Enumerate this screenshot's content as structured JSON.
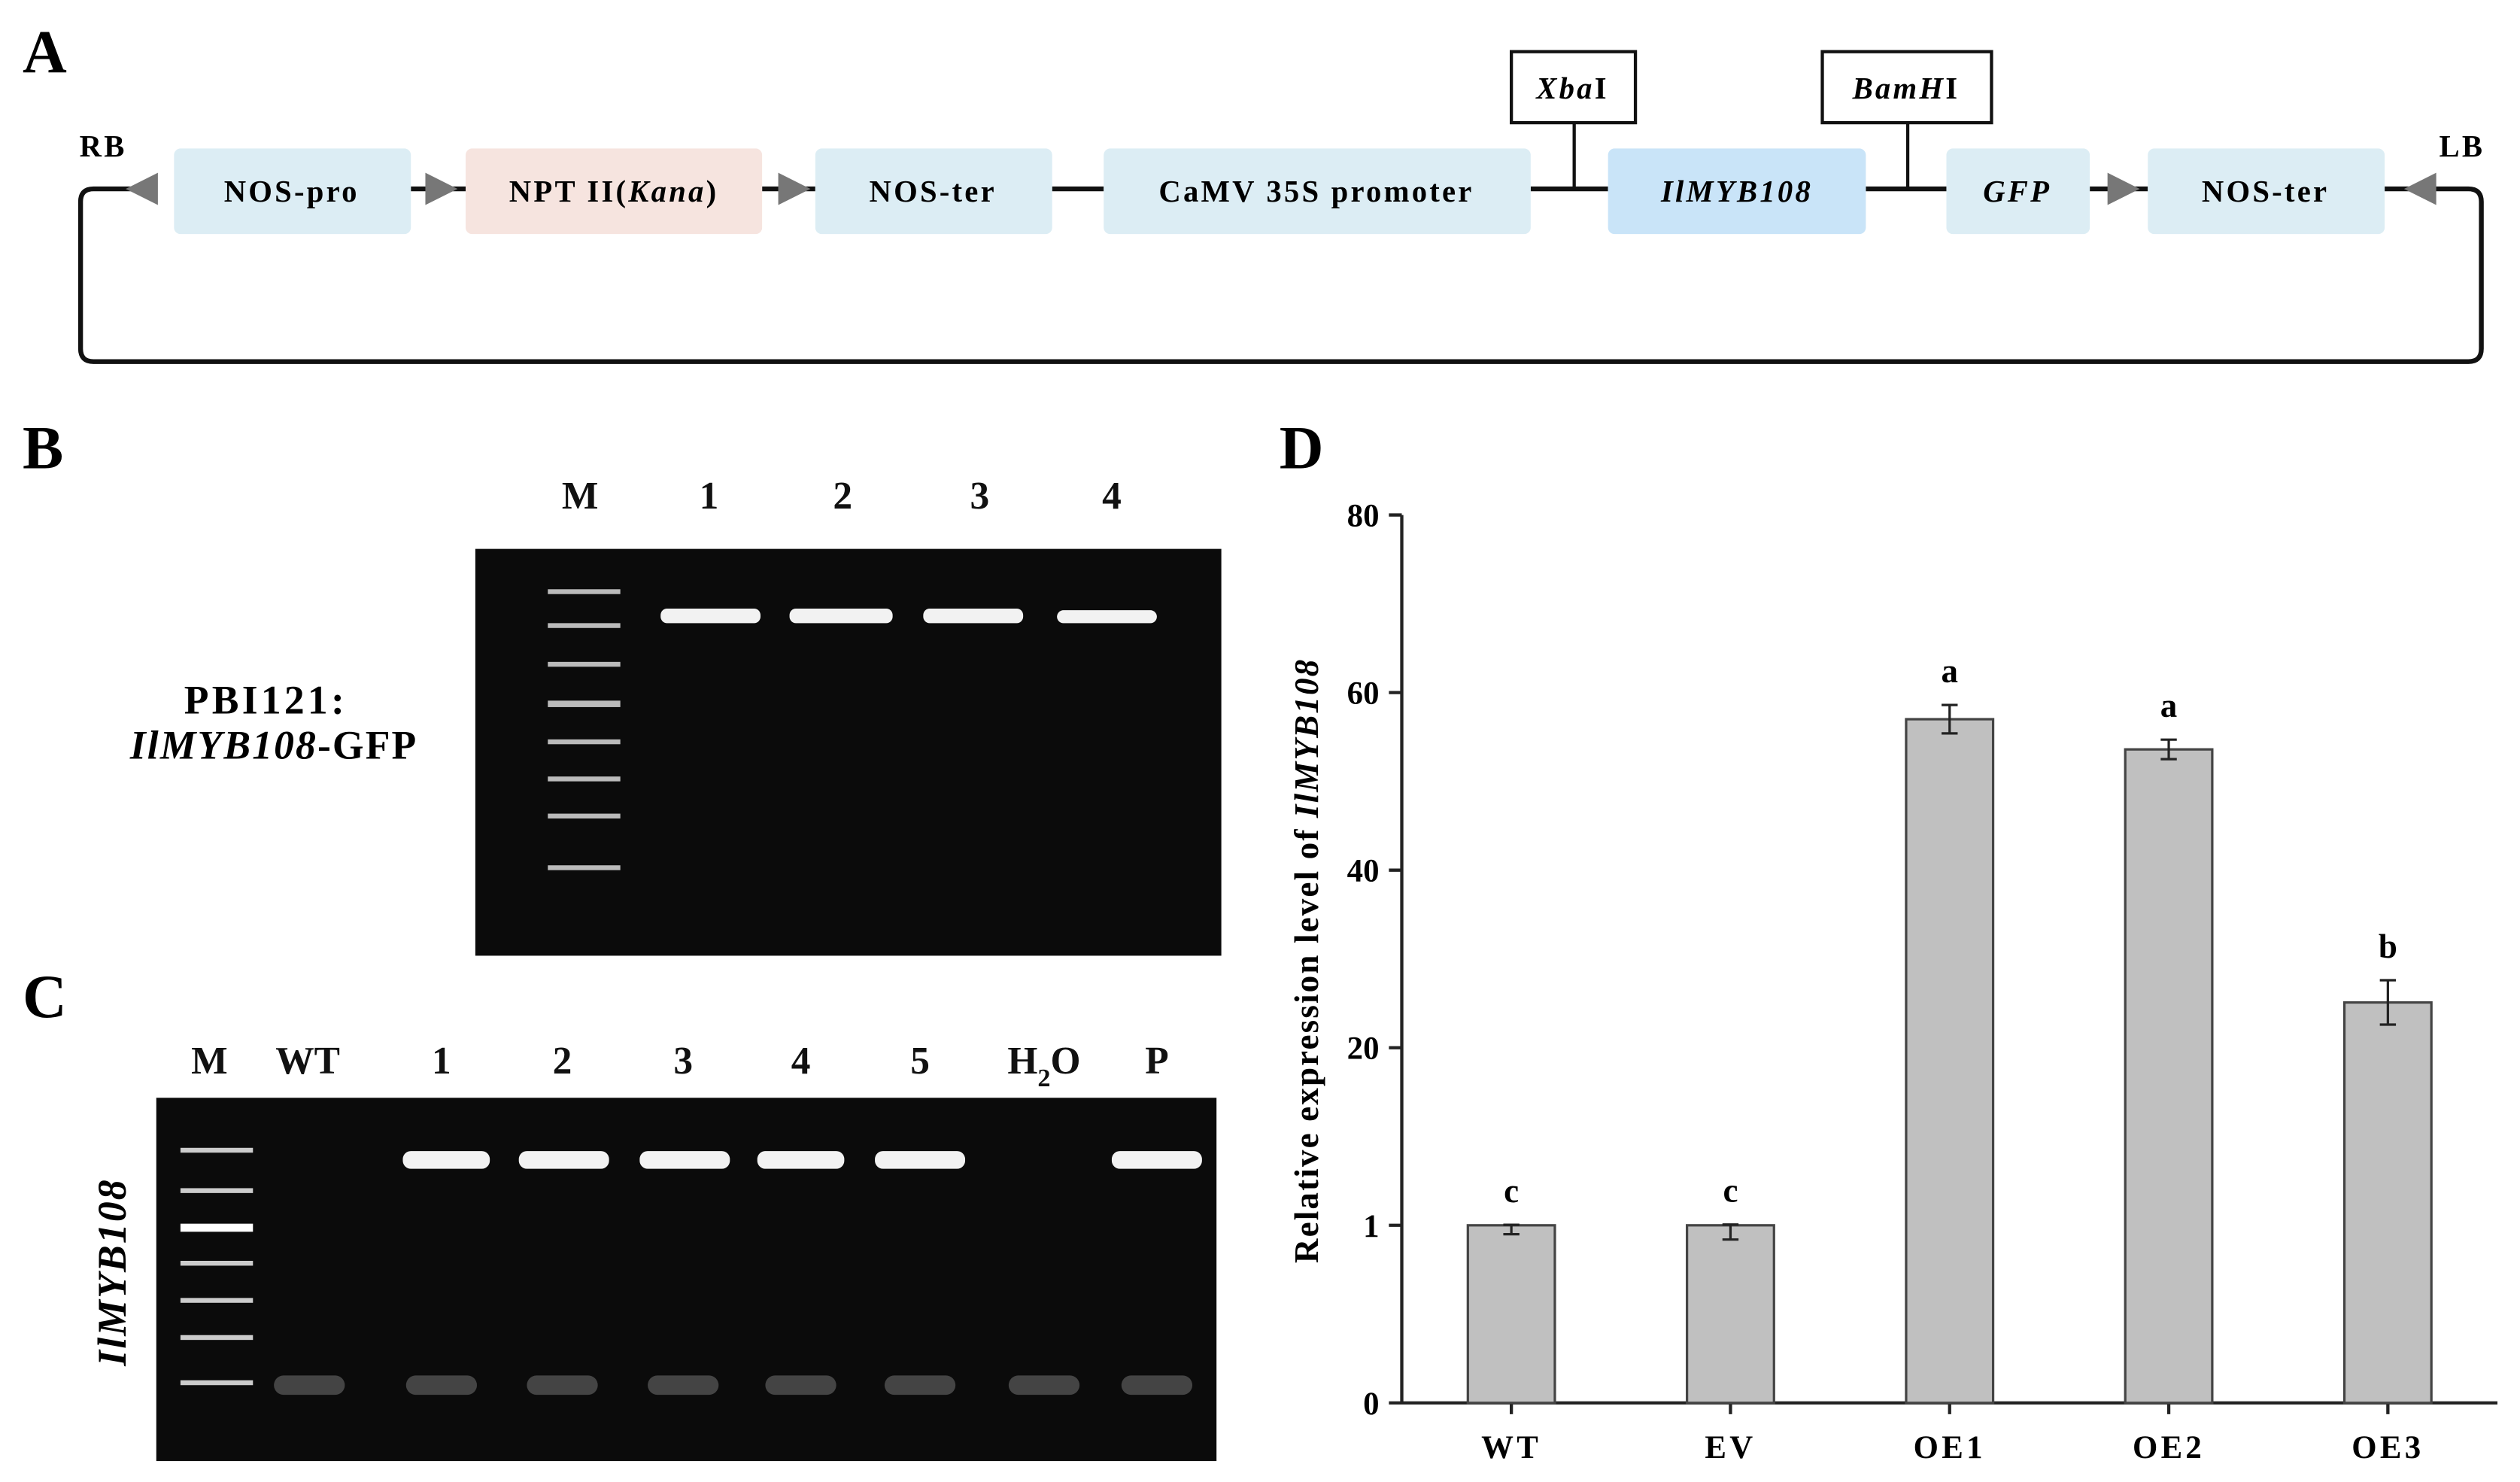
{
  "panel_a": {
    "letter": "A",
    "left_end": "RB",
    "right_end": "LB",
    "elements": [
      [
        "NOS-pro"
      ],
      [
        "NPT II(",
        "Kana",
        ")"
      ],
      [
        "NOS-ter"
      ],
      [
        "CaMV 35S promoter"
      ],
      [
        "IlMYB108"
      ],
      [
        "GFP"
      ],
      [
        "NOS-ter"
      ]
    ],
    "sites": [
      [
        "Xba",
        "I"
      ],
      [
        "BamH",
        "I"
      ]
    ]
  },
  "panel_b": {
    "letter": "B",
    "lanes": [
      "M",
      "1",
      "2",
      "3",
      "4"
    ],
    "sample_label": [
      "PBI121:",
      "IlMYB108",
      "-GFP"
    ]
  },
  "panel_c": {
    "letter": "C",
    "lanes": [
      [
        "M"
      ],
      [
        "WT"
      ],
      [
        "1"
      ],
      [
        "2"
      ],
      [
        "3"
      ],
      [
        "4"
      ],
      [
        "5"
      ],
      [
        "H",
        "2",
        "O"
      ],
      [
        "P"
      ]
    ],
    "gene_label": "IlMYB108"
  },
  "panel_d": {
    "letter": "D"
  },
  "chart_data": {
    "type": "bar",
    "ylabel": [
      "Relative expression level of ",
      "IlMYB108"
    ],
    "categories": [
      "WT",
      "EV",
      "OE1",
      "OE2",
      "OE3"
    ],
    "values": [
      1.0,
      1.0,
      57,
      53.6,
      25.1
    ],
    "errors": [
      0.05,
      0.08,
      1.6,
      1.1,
      2.5
    ],
    "annotations": [
      "c",
      "c",
      "a",
      "a",
      "b"
    ],
    "color": "#c0c0c0",
    "ylim": [
      0,
      80
    ],
    "yticks": [
      0,
      1,
      20,
      40,
      60,
      80
    ],
    "y_scale": "tick-spaced"
  }
}
